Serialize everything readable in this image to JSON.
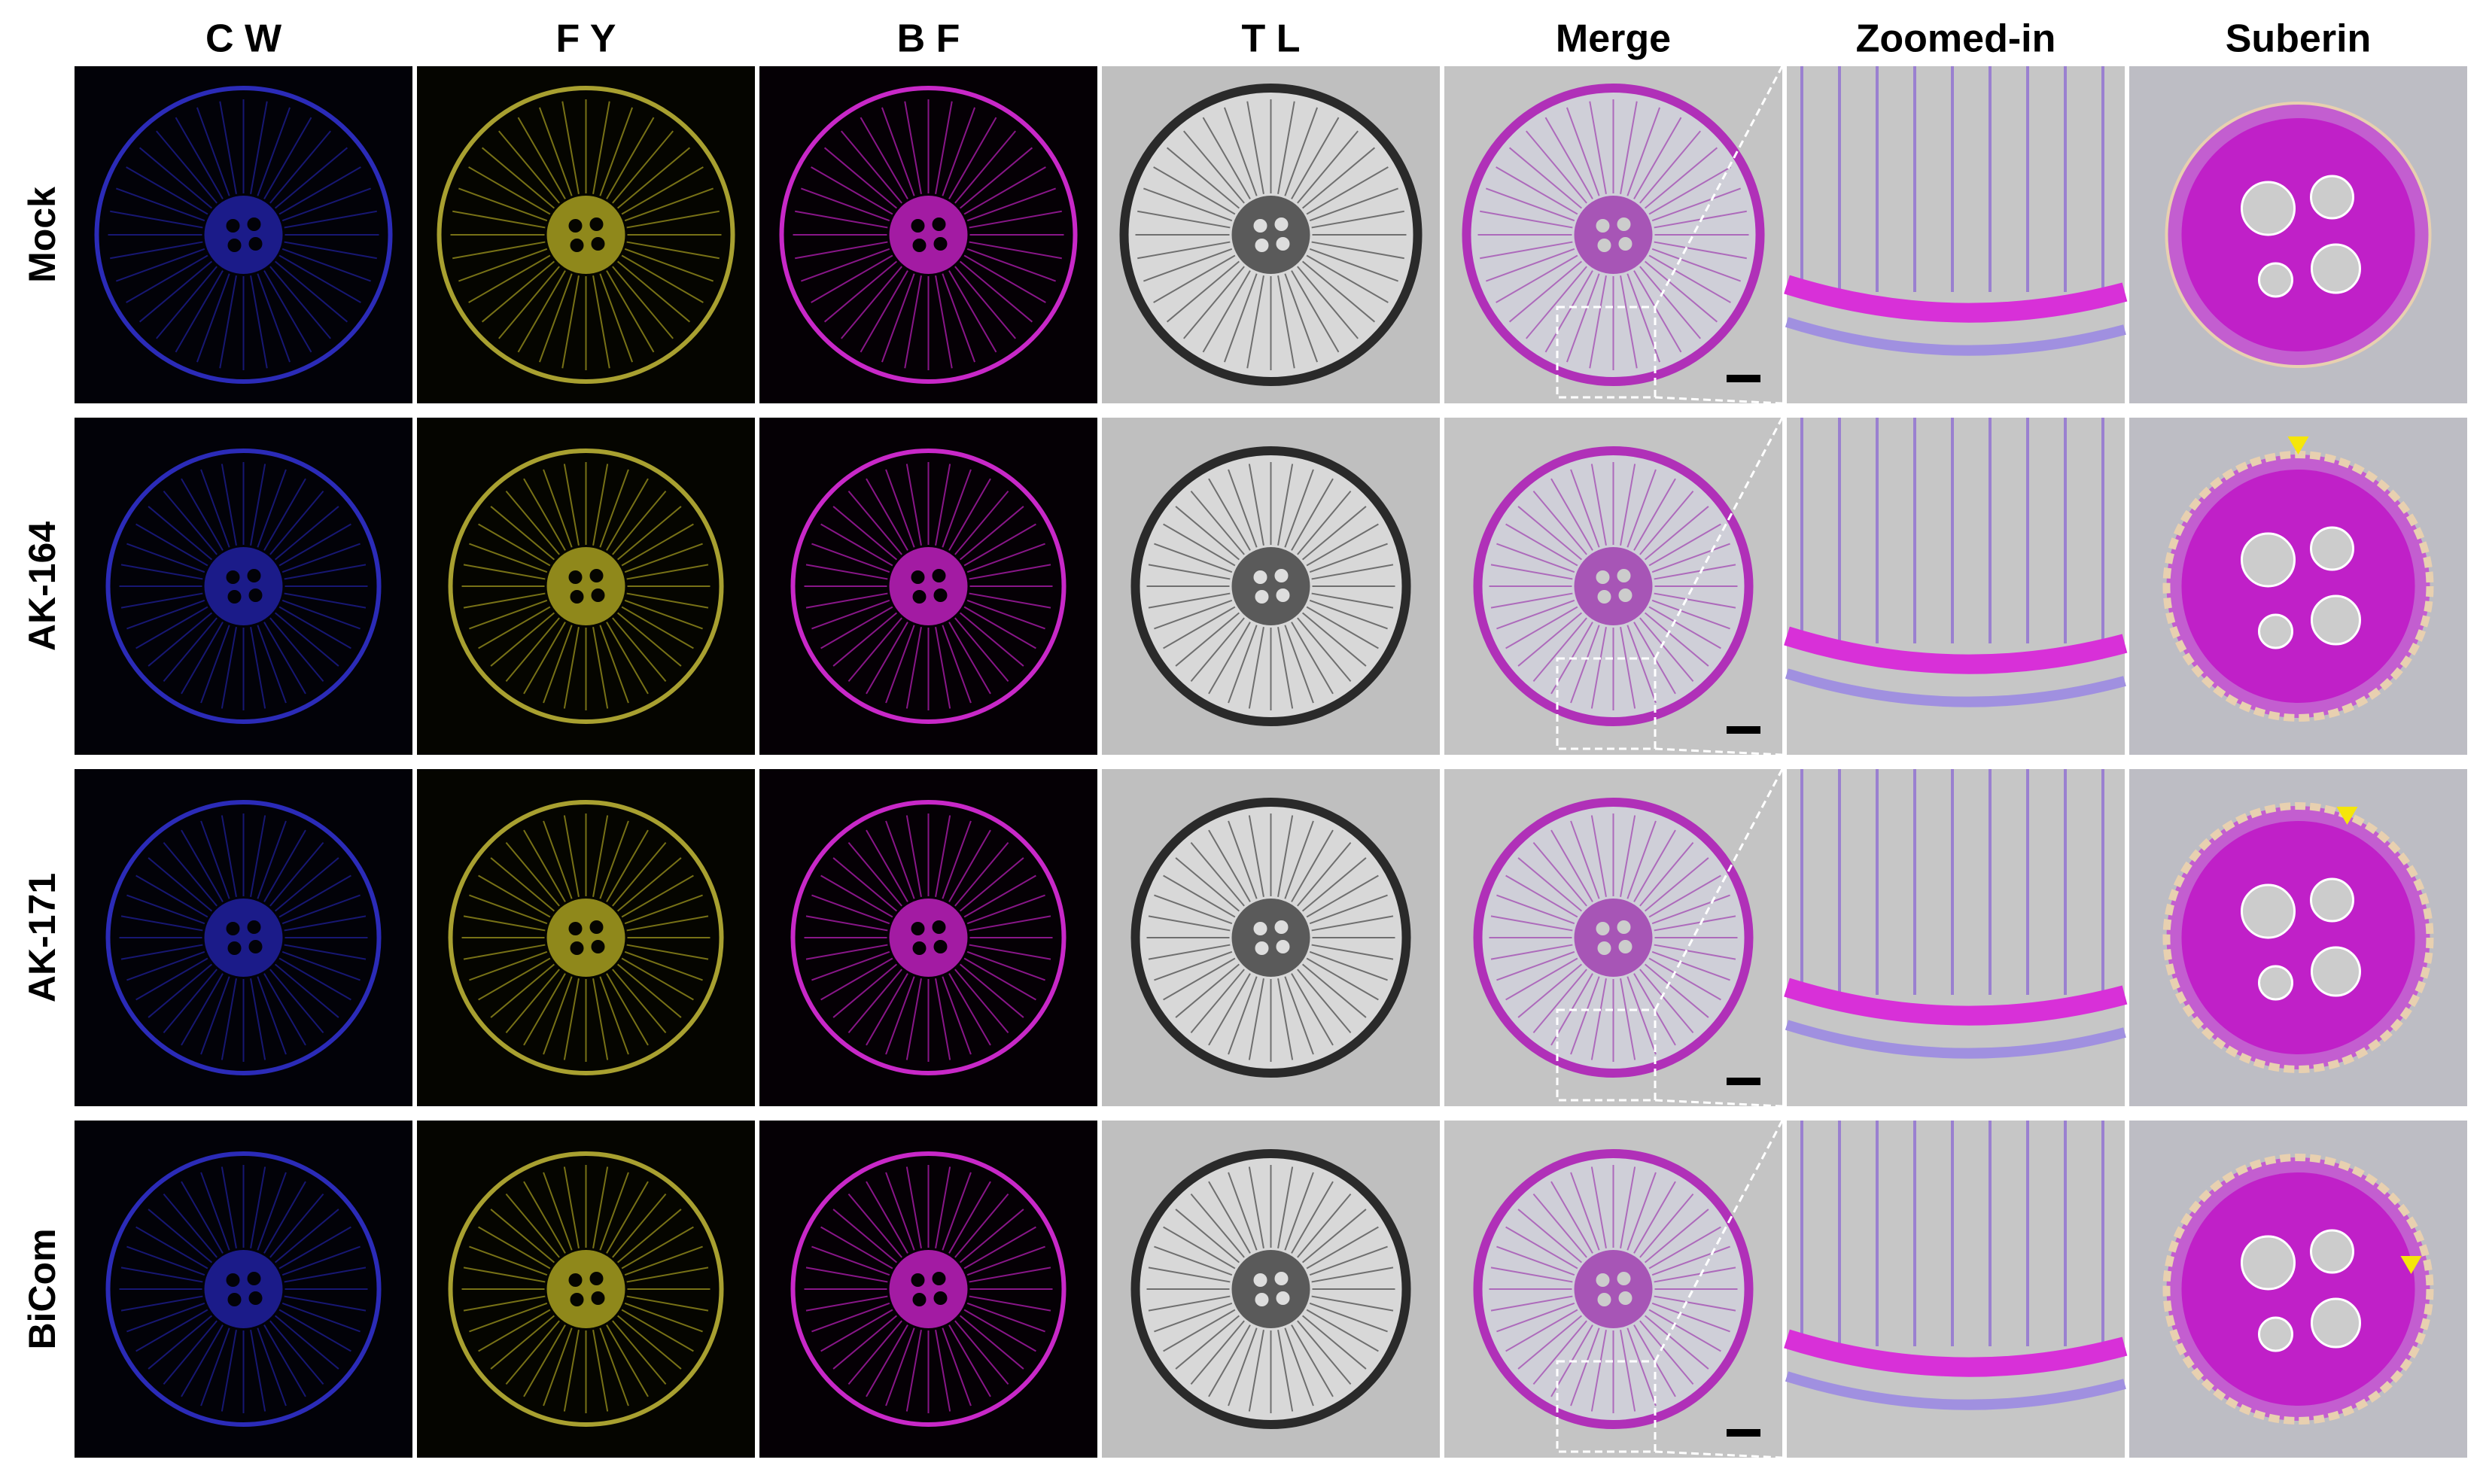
{
  "figure": {
    "columns": [
      "C W",
      "F Y",
      "B F",
      "T L",
      "Merge",
      "Zoomed-in",
      "Suberin"
    ],
    "rows": [
      "Mock",
      "AK-164",
      "AK-171",
      "BiCom"
    ]
  }
}
